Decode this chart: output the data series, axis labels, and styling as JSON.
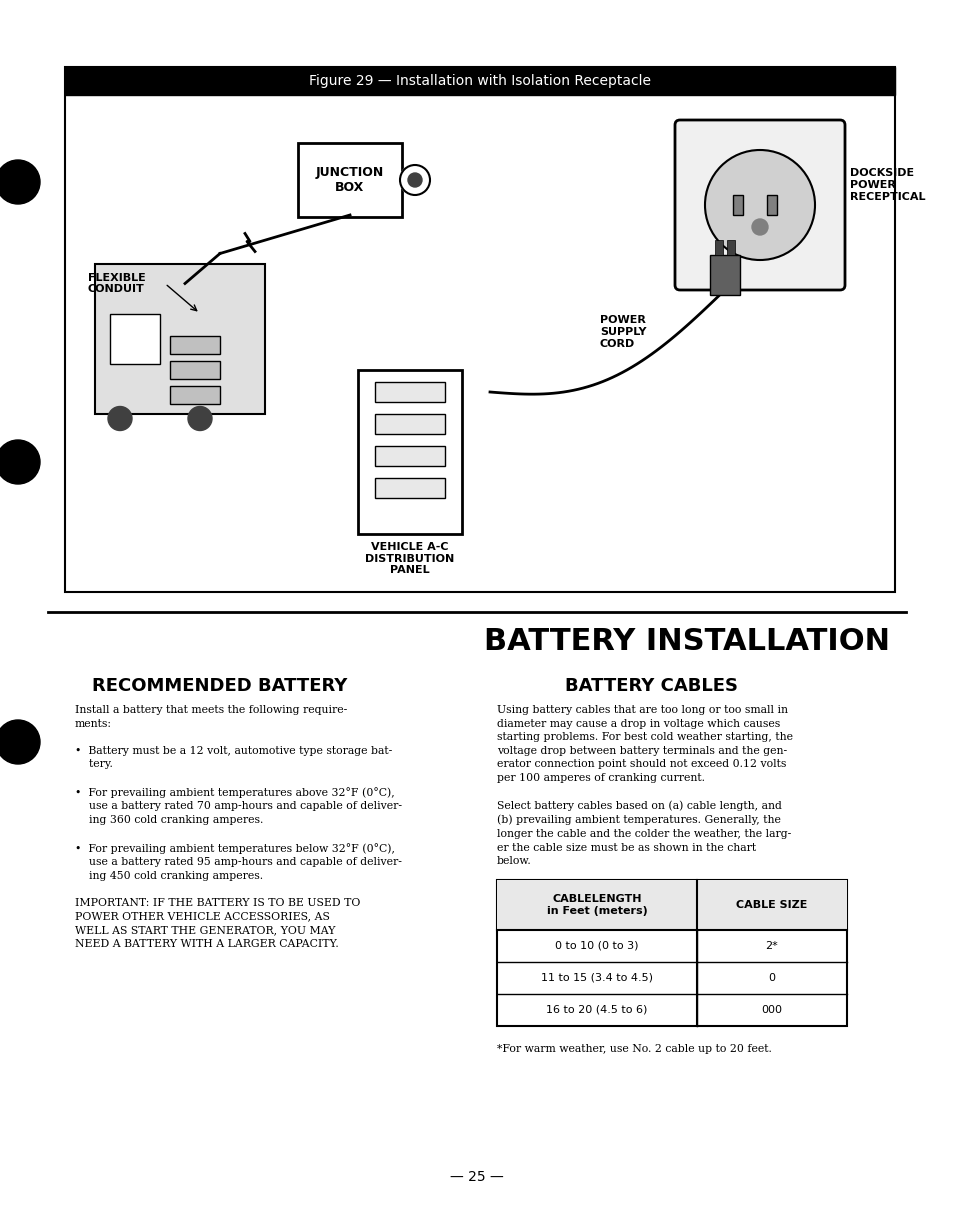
{
  "bg_color": "#ffffff",
  "page_bg": "#f5f5f5",
  "figure_title": "Figure 29 — Installation with Isolation Receptacle",
  "figure_title_bg": "#000000",
  "figure_title_color": "#ffffff",
  "section_title": "BATTERY INSTALLATION",
  "left_col_title": "RECOMMENDED BATTERY",
  "right_col_title": "BATTERY CABLES",
  "left_col_body": "Install a battery that meets the following require-\nments:\n\n•  Battery must be a 12 volt, automotive type storage bat-\n    tery.\n\n•  For prevailing ambient temperatures above 32°F (0°C),\n    use a battery rated 70 amp-hours and capable of deliver-\n    ing 360 cold cranking amperes.\n\n•  For prevailing ambient temperatures below 32°F (0°C),\n    use a battery rated 95 amp-hours and capable of deliver-\n    ing 450 cold cranking amperes.\n\nIMPORTANT: IF THE BATTERY IS TO BE USED TO\nPOWER OTHER VEHICLE ACCESSORIES, AS\nWELL AS START THE GENERATOR, YOU MAY\nNEED A BATTERY WITH A LARGER CAPACITY.",
  "right_col_body": "Using battery cables that are too long or too small in\ndiameter may cause a drop in voltage which causes\nstarting problems. For best cold weather starting, the\nvoltage drop between battery terminals and the gen-\nerator connection point should not exceed 0.12 volts\nper 100 amperes of cranking current.\n\nSelect battery cables based on (a) cable length, and\n(b) prevailing ambient temperatures. Generally, the\nlonger the cable and the colder the weather, the larg-\ner the cable size must be as shown in the chart\nbelow.",
  "table_header_row": [
    "CABLELENGTH\nin Feet (meters)",
    "CABLE SIZE"
  ],
  "table_rows": [
    [
      "0 to 10 (0 to 3)",
      "2*"
    ],
    [
      "11 to 15 (3.4 to 4.5)",
      "0"
    ],
    [
      "16 to 20 (4.5 to 6)",
      "000"
    ]
  ],
  "footnote": "*For warm weather, use No. 2 cable up to 20 feet.",
  "page_number": "— 25 —",
  "left_bullet_labels": [
    "FLEXIBLE\nCONDUIT",
    "JUNCTION\nBOX",
    "DOCKSIDE\nPOWER\nRECEPTICAL",
    "POWER\nSUPPLY\nCORD",
    "VEHICLE A-C\nDISTRIBUTION\nPANEL"
  ]
}
